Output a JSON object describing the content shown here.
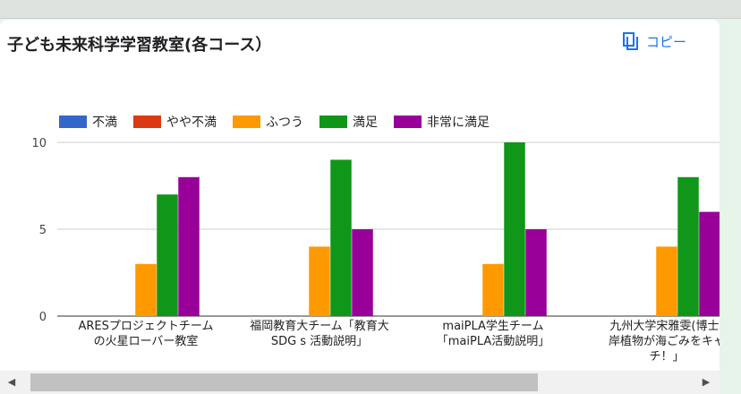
{
  "title": "子ども未来科学学習教室(各コース）",
  "copy_label": "コピー",
  "chart_data": {
    "type": "bar",
    "title": "子ども未来科学学習教室(各コース）",
    "categories": [
      [
        "ARESプロジェクトチーム",
        "の火星ローバー教室"
      ],
      [
        "福岡教育大チーム「教育大",
        "SDG s 活動説明」"
      ],
      [
        "maiPLA学生チーム",
        "「maiPLA活動説明」"
      ],
      [
        "九州大学宋雅雯(博士)",
        "岸植物が海ごみをキャ",
        "チ！」"
      ]
    ],
    "series": [
      {
        "name": "不満",
        "color": "#3366cc",
        "values": [
          0,
          0,
          0,
          0
        ]
      },
      {
        "name": "やや不満",
        "color": "#dc3912",
        "values": [
          0,
          0,
          0,
          0
        ]
      },
      {
        "name": "ふつう",
        "color": "#ff9900",
        "values": [
          3,
          4,
          3,
          4
        ]
      },
      {
        "name": "満足",
        "color": "#109618",
        "values": [
          7,
          9,
          10,
          8
        ]
      },
      {
        "name": "非常に満足",
        "color": "#990099",
        "values": [
          8,
          5,
          5,
          6
        ]
      }
    ],
    "yticks": [
      0,
      5,
      10
    ],
    "ylim": [
      0,
      10
    ],
    "grid": true,
    "legend": "top"
  }
}
